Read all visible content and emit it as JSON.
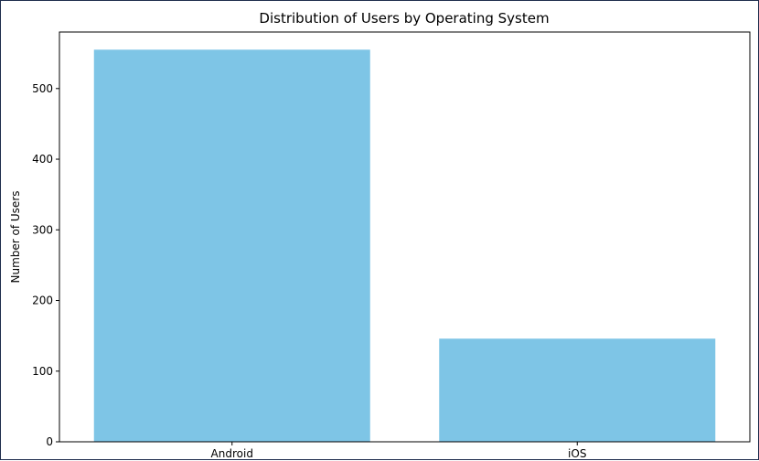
{
  "chart_data": {
    "type": "bar",
    "title": "Distribution of Users by Operating System",
    "xlabel": "",
    "ylabel": "Number of Users",
    "categories": [
      "Android",
      "iOS"
    ],
    "values": [
      555,
      146
    ],
    "ylim": [
      0,
      580
    ],
    "yticks": [
      0,
      100,
      200,
      300,
      400,
      500
    ],
    "bar_color": "#7ec5e6",
    "grid": false,
    "legend": "none"
  }
}
